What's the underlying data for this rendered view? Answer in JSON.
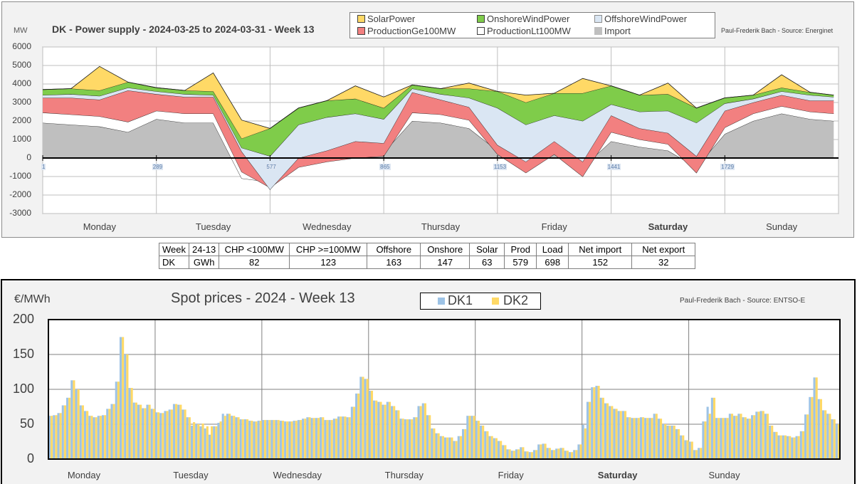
{
  "power_panel": {
    "unit": "MW",
    "credit": "Paul-Frederik Bach - Source: Energinet"
  },
  "summary_table": {
    "header": [
      "Week",
      "24-13",
      "CHP <100MW",
      "CHP >=100MW",
      "Offshore",
      "Onshore",
      "Solar",
      "Prod",
      "Load",
      "Net import",
      "Net export"
    ],
    "row": [
      "DK",
      "GWh",
      "82",
      "123",
      "163",
      "147",
      "63",
      "579",
      "698",
      "152",
      "32"
    ]
  },
  "price_panel": {
    "unit": "€/MWh",
    "credit": "Paul-Frederik Bach - Source: ENTSO-E"
  },
  "colors": {
    "solar": "#ffd966",
    "onshore": "#7fcc4a",
    "offshore": "#dae6f3",
    "ge100": "#f28080",
    "lt100": "#ffffff",
    "import": "#bfbfbf",
    "dk1": "#9dc3e6",
    "dk2": "#ffd966"
  },
  "chart_data": [
    {
      "type": "area",
      "title": "DK - Power supply - 2024-03-25 to 2024-03-31 - Week 13",
      "ylabel": "MW",
      "ylim": [
        -3000,
        6000
      ],
      "yticks": [
        "6000",
        "5000",
        "4000",
        "3000",
        "2000",
        "1000",
        "0",
        "-1000",
        "-2000",
        "-3000"
      ],
      "x_tick_numbers": [
        "1",
        "289",
        "577",
        "865",
        "1153",
        "1441",
        "1729"
      ],
      "day_labels": [
        "Monday",
        "Tuesday",
        "Wednesday",
        "Thursday",
        "Friday",
        "Saturday",
        "Sunday"
      ],
      "grid": true,
      "legend": [
        "SolarPower",
        "OnshoreWindPower",
        "OffshoreWindPower",
        "ProductionGe100MW",
        "ProductionLt100MW",
        "Import"
      ],
      "x_hours": [
        0,
        6,
        12,
        18,
        24,
        30,
        36,
        42,
        48,
        54,
        60,
        66,
        72,
        78,
        84,
        90,
        96,
        102,
        108,
        114,
        120,
        126,
        132,
        138,
        144,
        150,
        156,
        162,
        167
      ],
      "series": [
        {
          "name": "Import",
          "values": [
            1900,
            1800,
            1700,
            1400,
            2100,
            1900,
            1900,
            -1100,
            -1300,
            -300,
            -100,
            100,
            300,
            2000,
            1900,
            1600,
            400,
            -400,
            500,
            -500,
            900,
            600,
            400,
            -500,
            1300,
            2000,
            2400,
            2100,
            2000
          ]
        },
        {
          "name": "ProductionLt100MW",
          "values": [
            550,
            550,
            550,
            550,
            450,
            500,
            500,
            350,
            -300,
            -200,
            -100,
            -100,
            -200,
            450,
            450,
            450,
            -200,
            -400,
            -300,
            -500,
            500,
            400,
            350,
            -300,
            350,
            400,
            400,
            400,
            400
          ]
        },
        {
          "name": "ProductionGe100MW",
          "values": [
            800,
            900,
            900,
            1700,
            900,
            900,
            900,
            1100,
            -100,
            500,
            600,
            900,
            700,
            1100,
            800,
            700,
            500,
            600,
            700,
            800,
            900,
            600,
            600,
            900,
            900,
            600,
            600,
            600,
            700
          ]
        },
        {
          "name": "OffshoreWindPower",
          "values": [
            150,
            200,
            200,
            150,
            150,
            150,
            100,
            200,
            1800,
            1800,
            1800,
            1500,
            1300,
            200,
            300,
            500,
            2000,
            2000,
            1400,
            2200,
            600,
            900,
            1200,
            1800,
            400,
            200,
            200,
            300,
            200
          ]
        },
        {
          "name": "OnshoreWindPower",
          "values": [
            300,
            300,
            300,
            300,
            200,
            200,
            200,
            500,
            1500,
            900,
            900,
            800,
            600,
            200,
            300,
            500,
            900,
            1200,
            1200,
            1500,
            1000,
            900,
            900,
            800,
            300,
            200,
            200,
            150,
            100
          ]
        },
        {
          "name": "SolarPower",
          "values": [
            0,
            0,
            1300,
            0,
            0,
            0,
            1000,
            1000,
            0,
            0,
            0,
            700,
            600,
            0,
            0,
            300,
            0,
            400,
            0,
            800,
            0,
            0,
            600,
            0,
            0,
            0,
            700,
            0,
            0
          ]
        }
      ]
    },
    {
      "type": "bar",
      "title": "Spot prices - 2024 - Week 13",
      "ylabel": "€/MWh",
      "ylim": [
        0,
        200
      ],
      "yticks": [
        "200",
        "150",
        "100",
        "50",
        "0"
      ],
      "day_labels": [
        "Monday",
        "Tuesday",
        "Wednesday",
        "Thursday",
        "Friday",
        "Saturday",
        "Sunday"
      ],
      "grid": true,
      "legend": [
        "DK1",
        "DK2"
      ],
      "series": [
        {
          "name": "DK1",
          "values": [
            62,
            63,
            66,
            77,
            88,
            113,
            100,
            77,
            69,
            62,
            60,
            62,
            63,
            72,
            79,
            111,
            175,
            150,
            102,
            81,
            78,
            73,
            78,
            72,
            67,
            66,
            69,
            71,
            79,
            78,
            71,
            60,
            48,
            50,
            47,
            44,
            35,
            47,
            52,
            65,
            65,
            62,
            60,
            57,
            57,
            55,
            54,
            55,
            56,
            56,
            56,
            56,
            55,
            54,
            54,
            55,
            56,
            58,
            60,
            59,
            59,
            60,
            56,
            56,
            58,
            61,
            61,
            60,
            75,
            94,
            118,
            115,
            98,
            84,
            82,
            78,
            82,
            76,
            70,
            58,
            57,
            57,
            60,
            76,
            80,
            63,
            44,
            37,
            33,
            31,
            31,
            26,
            33,
            43,
            62,
            62,
            55,
            48,
            40,
            33,
            30,
            26,
            20,
            14,
            12,
            14,
            17,
            11,
            10,
            13,
            21,
            22,
            16,
            13,
            15,
            16,
            12,
            10,
            13,
            21,
            49,
            82,
            103,
            105,
            88,
            80,
            76,
            72,
            69,
            69,
            60,
            59,
            59,
            60,
            59,
            59,
            65,
            58,
            50,
            48,
            48,
            43,
            34,
            27,
            25,
            13,
            16,
            54,
            75,
            88,
            59,
            59,
            59,
            65,
            62,
            65,
            60,
            58,
            63,
            68,
            69,
            65,
            48,
            39,
            34,
            34,
            33,
            31,
            33,
            40,
            64,
            89,
            117,
            86,
            70,
            65,
            57,
            50
          ]
        },
        {
          "name": "DK2",
          "values": [
            62,
            63,
            66,
            77,
            88,
            113,
            100,
            77,
            69,
            62,
            60,
            62,
            63,
            72,
            79,
            111,
            175,
            150,
            102,
            81,
            78,
            73,
            78,
            72,
            67,
            66,
            69,
            71,
            79,
            78,
            71,
            60,
            53,
            50,
            51,
            47,
            47,
            47,
            54,
            62,
            65,
            62,
            60,
            57,
            57,
            55,
            54,
            55,
            56,
            56,
            56,
            56,
            55,
            54,
            54,
            55,
            56,
            58,
            60,
            59,
            59,
            60,
            56,
            56,
            58,
            61,
            61,
            60,
            75,
            94,
            118,
            115,
            98,
            84,
            82,
            78,
            82,
            76,
            70,
            58,
            57,
            57,
            60,
            76,
            80,
            63,
            44,
            37,
            33,
            31,
            31,
            26,
            33,
            43,
            62,
            62,
            55,
            48,
            40,
            33,
            30,
            26,
            20,
            14,
            12,
            14,
            17,
            11,
            10,
            13,
            21,
            22,
            16,
            13,
            15,
            16,
            12,
            10,
            13,
            21,
            44,
            82,
            103,
            105,
            88,
            80,
            76,
            72,
            69,
            69,
            60,
            59,
            59,
            60,
            59,
            59,
            65,
            58,
            50,
            48,
            48,
            43,
            34,
            27,
            25,
            13,
            16,
            54,
            65,
            88,
            59,
            59,
            59,
            65,
            62,
            65,
            60,
            58,
            63,
            68,
            69,
            65,
            48,
            39,
            34,
            34,
            33,
            31,
            33,
            40,
            64,
            89,
            117,
            86,
            70,
            65,
            57,
            50
          ]
        }
      ]
    }
  ]
}
